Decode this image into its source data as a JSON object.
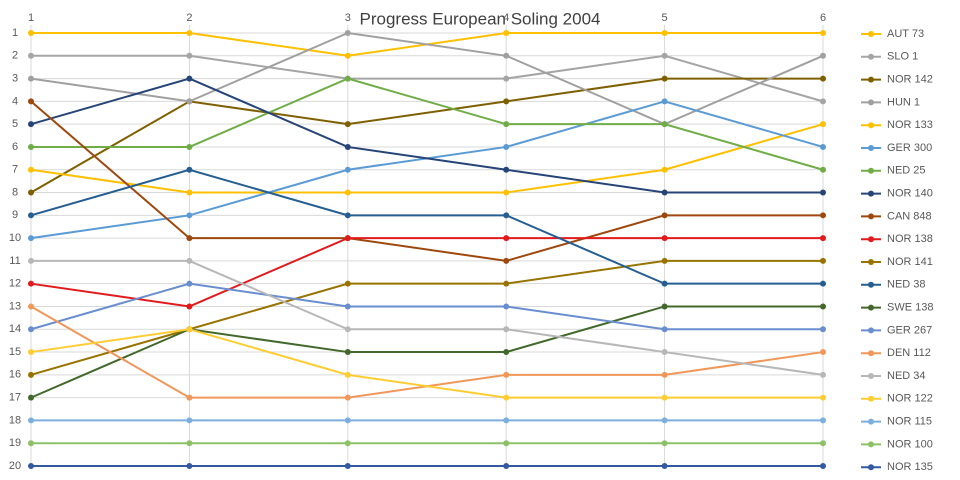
{
  "chart_data": {
    "type": "line",
    "title": "Progress European Soling 2004",
    "categories": [
      "1",
      "2",
      "3",
      "4",
      "5",
      "6"
    ],
    "ylim": [
      1,
      20
    ],
    "y_inverted": true,
    "yticks": [
      1,
      2,
      3,
      4,
      5,
      6,
      7,
      8,
      9,
      10,
      11,
      12,
      13,
      14,
      15,
      16,
      17,
      18,
      19,
      20
    ],
    "grid": true,
    "legend": "right",
    "series": [
      {
        "name": "AUT 73",
        "color": "#ffc000",
        "values": [
          1,
          1,
          2,
          1,
          1,
          1
        ]
      },
      {
        "name": "SLO 1",
        "color": "#a5a5a5",
        "values": [
          2,
          2,
          3,
          3,
          2,
          4
        ]
      },
      {
        "name": "NOR 142",
        "color": "#7f6000",
        "values": [
          8,
          4,
          5,
          4,
          3,
          3
        ]
      },
      {
        "name": "HUN 1",
        "color": "#a0a0a0",
        "values": [
          3,
          4,
          1,
          2,
          5,
          2
        ]
      },
      {
        "name": "NOR 133",
        "color": "#ffc000",
        "values": [
          7,
          8,
          8,
          8,
          7,
          5
        ]
      },
      {
        "name": "GER 300",
        "color": "#5b9bd5",
        "values": [
          10,
          9,
          7,
          6,
          4,
          6
        ]
      },
      {
        "name": "NED 25",
        "color": "#70ad47",
        "values": [
          6,
          6,
          3,
          5,
          5,
          7
        ]
      },
      {
        "name": "NOR 140",
        "color": "#264478",
        "values": [
          5,
          3,
          6,
          7,
          8,
          8
        ]
      },
      {
        "name": "CAN 848",
        "color": "#9e480e",
        "values": [
          4,
          10,
          10,
          11,
          9,
          9
        ]
      },
      {
        "name": "NOR 138",
        "color": "#e31a1c",
        "values": [
          12,
          13,
          10,
          10,
          10,
          10
        ]
      },
      {
        "name": "NOR 141",
        "color": "#997300",
        "values": [
          16,
          14,
          12,
          12,
          11,
          11
        ]
      },
      {
        "name": "NED 38",
        "color": "#255e91",
        "values": [
          9,
          7,
          9,
          9,
          12,
          12
        ]
      },
      {
        "name": "SWE 138",
        "color": "#43682b",
        "values": [
          17,
          14,
          15,
          15,
          13,
          13
        ]
      },
      {
        "name": "GER 267",
        "color": "#698ed0",
        "values": [
          14,
          12,
          13,
          13,
          14,
          14
        ]
      },
      {
        "name": "DEN 112",
        "color": "#f1975a",
        "values": [
          13,
          17,
          17,
          16,
          16,
          15
        ]
      },
      {
        "name": "NED 34",
        "color": "#b7b7b7",
        "values": [
          11,
          11,
          14,
          14,
          15,
          16
        ]
      },
      {
        "name": "NOR 122",
        "color": "#ffcd33",
        "values": [
          15,
          14,
          16,
          17,
          17,
          17
        ]
      },
      {
        "name": "NOR 115",
        "color": "#7cafdd",
        "values": [
          18,
          18,
          18,
          18,
          18,
          18
        ]
      },
      {
        "name": "NOR 100",
        "color": "#8cc168",
        "values": [
          19,
          19,
          19,
          19,
          19,
          19
        ]
      },
      {
        "name": "NOR 135",
        "color": "#335aa1",
        "values": [
          20,
          20,
          20,
          20,
          20,
          20
        ]
      }
    ]
  }
}
